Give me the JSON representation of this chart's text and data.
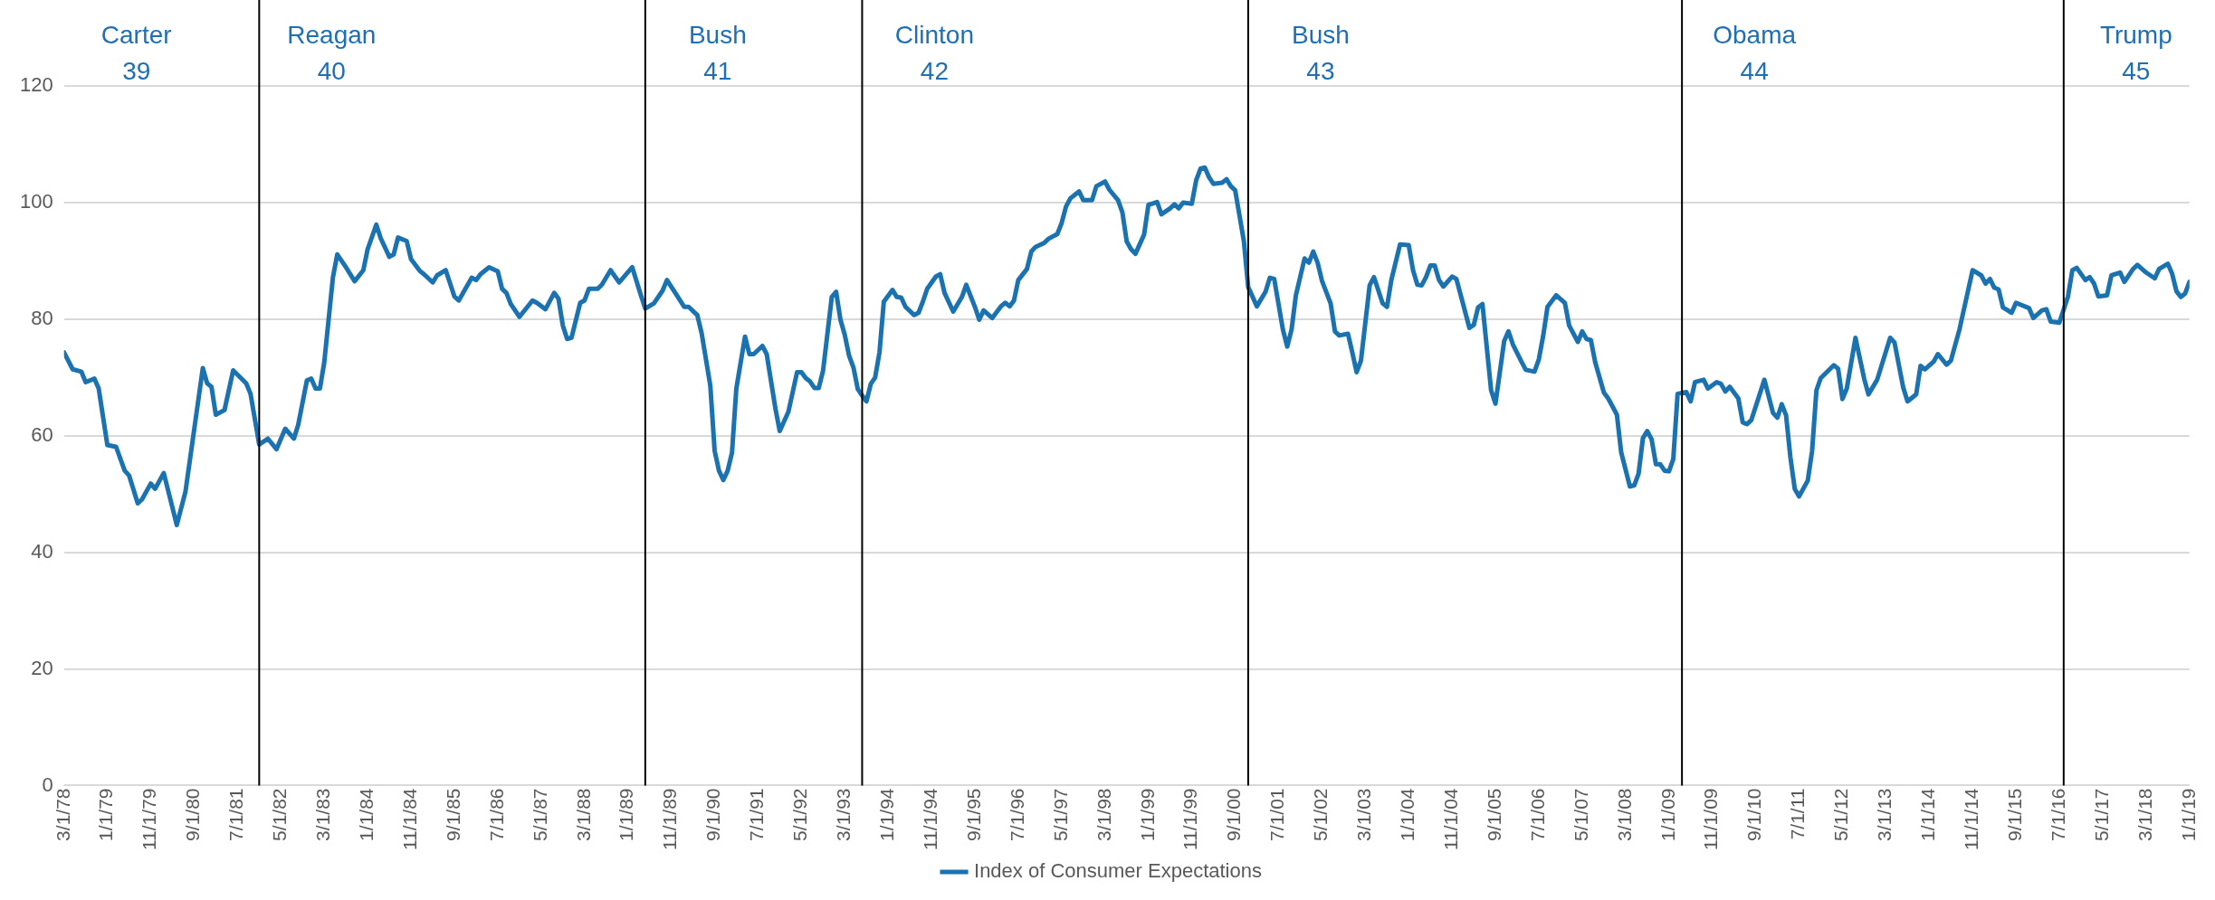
{
  "chart_data": {
    "type": "line",
    "x": [
      "1978-03",
      "1978-05",
      "1978-07",
      "1978-08",
      "1978-10",
      "1978-11",
      "1979-01",
      "1979-03",
      "1979-05",
      "1979-06",
      "1979-08",
      "1979-09",
      "1979-11",
      "1979-12",
      "1980-02",
      "1980-05",
      "1980-07",
      "1980-11",
      "1980-12",
      "1981-01",
      "1981-02",
      "1981-04",
      "1981-06",
      "1981-09",
      "1981-10",
      "1981-12",
      "1982-02",
      "1982-04",
      "1982-06",
      "1982-08",
      "1982-09",
      "1982-11",
      "1982-12",
      "1983-01",
      "1983-02",
      "1983-03",
      "1983-05",
      "1983-06",
      "1983-08",
      "1983-10",
      "1983-12",
      "1984-01",
      "1984-03",
      "1984-04",
      "1984-06",
      "1984-07",
      "1984-08",
      "1984-10",
      "1984-11",
      "1985-01",
      "1985-02",
      "1985-04",
      "1985-05",
      "1985-07",
      "1985-09",
      "1985-10",
      "1986-01",
      "1986-02",
      "1986-03",
      "1986-05",
      "1986-07",
      "1986-08",
      "1986-09",
      "1986-10",
      "1986-12",
      "1987-03",
      "1987-04",
      "1987-06",
      "1987-08",
      "1987-09",
      "1987-10",
      "1987-11",
      "1987-12",
      "1988-02",
      "1988-03",
      "1988-04",
      "1988-06",
      "1988-07",
      "1988-09",
      "1988-11",
      "1989-02",
      "1989-04",
      "1989-05",
      "1989-07",
      "1989-09",
      "1989-10",
      "1989-12",
      "1990-02",
      "1990-03",
      "1990-05",
      "1990-06",
      "1990-08",
      "1990-09",
      "1990-10",
      "1990-11",
      "1990-12",
      "1991-01",
      "1991-02",
      "1991-04",
      "1991-05",
      "1991-06",
      "1991-08",
      "1991-09",
      "1991-11",
      "1991-12",
      "1992-02",
      "1992-04",
      "1992-05",
      "1992-06",
      "1992-07",
      "1992-08",
      "1992-09",
      "1992-10",
      "1992-12",
      "1993-01",
      "1993-02",
      "1993-03",
      "1993-04",
      "1993-05",
      "1993-06",
      "1993-07",
      "1993-08",
      "1993-09",
      "1993-10",
      "1993-11",
      "1993-12",
      "1994-02",
      "1994-03",
      "1994-04",
      "1994-05",
      "1994-07",
      "1994-08",
      "1994-09",
      "1994-10",
      "1994-12",
      "1995-01",
      "1995-02",
      "1995-04",
      "1995-06",
      "1995-07",
      "1995-09",
      "1995-10",
      "1995-11",
      "1996-01",
      "1996-03",
      "1996-04",
      "1996-05",
      "1996-06",
      "1996-07",
      "1996-09",
      "1996-10",
      "1996-11",
      "1997-01",
      "1997-02",
      "1997-04",
      "1997-05",
      "1997-06",
      "1997-07",
      "1997-08",
      "1997-09",
      "1997-10",
      "1997-12",
      "1998-01",
      "1998-03",
      "1998-04",
      "1998-06",
      "1998-07",
      "1998-08",
      "1998-09",
      "1998-10",
      "1998-12",
      "1999-01",
      "1999-03",
      "1999-04",
      "1999-06",
      "1999-07",
      "1999-08",
      "1999-09",
      "1999-11",
      "1999-12",
      "2000-01",
      "2000-02",
      "2000-03",
      "2000-04",
      "2000-06",
      "2000-07",
      "2000-08",
      "2000-09",
      "2000-11",
      "2000-12",
      "2001-02",
      "2001-04",
      "2001-05",
      "2001-06",
      "2001-08",
      "2001-09",
      "2001-10",
      "2001-11",
      "2002-01",
      "2002-02",
      "2002-03",
      "2002-04",
      "2002-05",
      "2002-07",
      "2002-08",
      "2002-09",
      "2002-11",
      "2002-12",
      "2003-01",
      "2003-02",
      "2003-04",
      "2003-05",
      "2003-07",
      "2003-08",
      "2003-09",
      "2003-11",
      "2004-01",
      "2004-02",
      "2004-03",
      "2004-04",
      "2004-05",
      "2004-06",
      "2004-07",
      "2004-08",
      "2004-09",
      "2004-11",
      "2004-12",
      "2005-03",
      "2005-04",
      "2005-05",
      "2005-06",
      "2005-08",
      "2005-09",
      "2005-11",
      "2005-12",
      "2006-01",
      "2006-03",
      "2006-04",
      "2006-06",
      "2006-07",
      "2006-08",
      "2006-09",
      "2006-11",
      "2007-01",
      "2007-02",
      "2007-04",
      "2007-05",
      "2007-06",
      "2007-07",
      "2007-08",
      "2007-10",
      "2007-11",
      "2008-01",
      "2008-02",
      "2008-04",
      "2008-05",
      "2008-06",
      "2008-07",
      "2008-08",
      "2008-09",
      "2008-10",
      "2008-11",
      "2008-12",
      "2009-01",
      "2009-02",
      "2009-03",
      "2009-05",
      "2009-06",
      "2009-07",
      "2009-09",
      "2009-10",
      "2009-12",
      "2010-01",
      "2010-02",
      "2010-03",
      "2010-05",
      "2010-06",
      "2010-07",
      "2010-08",
      "2010-11",
      "2011-01",
      "2011-02",
      "2011-03",
      "2011-04",
      "2011-05",
      "2011-06",
      "2011-07",
      "2011-09",
      "2011-10",
      "2011-11",
      "2011-12",
      "2012-03",
      "2012-04",
      "2012-05",
      "2012-06",
      "2012-08",
      "2012-10",
      "2012-11",
      "2013-01",
      "2013-04",
      "2013-05",
      "2013-07",
      "2013-08",
      "2013-10",
      "2013-11",
      "2013-12",
      "2014-02",
      "2014-03",
      "2014-05",
      "2014-06",
      "2014-08",
      "2014-11",
      "2015-01",
      "2015-02",
      "2015-03",
      "2015-04",
      "2015-05",
      "2015-06",
      "2015-08",
      "2015-09",
      "2015-12",
      "2016-01",
      "2016-03",
      "2016-04",
      "2016-05",
      "2016-07",
      "2016-09",
      "2016-10",
      "2016-11",
      "2017-01",
      "2017-02",
      "2017-03",
      "2017-04",
      "2017-06",
      "2017-07",
      "2017-09",
      "2017-10",
      "2017-12",
      "2018-01",
      "2018-03",
      "2018-05",
      "2018-06",
      "2018-08",
      "2018-09",
      "2018-10",
      "2018-11",
      "2018-12",
      "2019-01"
    ],
    "series": [
      {
        "name": "Index of Consumer Expectations",
        "color": "#1b72b0",
        "values": [
          74.3,
          71.4,
          71.0,
          69.2,
          69.8,
          68.1,
          58.4,
          58.1,
          54.0,
          53.2,
          48.4,
          49.1,
          51.8,
          50.9,
          53.6,
          44.7,
          50.4,
          71.6,
          69.0,
          68.4,
          63.6,
          64.4,
          71.2,
          69.0,
          67.2,
          58.5,
          59.5,
          57.7,
          61.2,
          59.5,
          61.9,
          69.5,
          69.8,
          68.1,
          68.1,
          72.6,
          87.2,
          91.1,
          88.9,
          86.5,
          88.4,
          92.0,
          96.2,
          93.9,
          90.7,
          91.1,
          94.0,
          93.4,
          90.3,
          88.3,
          87.7,
          86.3,
          87.5,
          88.4,
          83.9,
          83.2,
          87.1,
          86.7,
          87.7,
          88.9,
          88.2,
          85.2,
          84.5,
          82.6,
          80.4,
          83.2,
          82.8,
          81.7,
          84.5,
          83.5,
          78.9,
          76.6,
          76.8,
          82.8,
          83.2,
          85.2,
          85.2,
          85.9,
          88.4,
          86.3,
          88.9,
          84.1,
          81.8,
          82.7,
          84.9,
          86.7,
          84.4,
          82.1,
          82.1,
          80.7,
          77.6,
          68.6,
          57.4,
          54.0,
          52.4,
          54.0,
          57.1,
          68.1,
          77.0,
          74.0,
          74.0,
          75.4,
          74.0,
          64.7,
          60.8,
          64.1,
          70.9,
          70.9,
          69.9,
          69.3,
          68.2,
          68.2,
          71.2,
          83.8,
          84.7,
          79.9,
          77.3,
          73.7,
          71.7,
          68.0,
          66.9,
          65.9,
          68.9,
          70.0,
          74.3,
          83.0,
          85.0,
          83.8,
          83.7,
          82.1,
          80.7,
          81.1,
          83.0,
          85.2,
          87.3,
          87.7,
          84.5,
          81.3,
          83.8,
          85.9,
          82.1,
          79.9,
          81.5,
          80.2,
          82.2,
          82.8,
          82.2,
          83.2,
          86.7,
          88.6,
          91.6,
          92.4,
          93.1,
          93.8,
          94.6,
          96.5,
          99.3,
          100.7,
          101.3,
          101.9,
          100.4,
          100.4,
          102.8,
          103.6,
          102.2,
          100.4,
          98.3,
          93.3,
          92.0,
          91.2,
          94.5,
          99.6,
          100.1,
          98.0,
          99.0,
          99.7,
          99.0,
          100.0,
          99.8,
          103.8,
          105.8,
          106.0,
          104.3,
          103.2,
          103.4,
          104.0,
          102.8,
          102.1,
          93.4,
          85.5,
          82.2,
          84.7,
          87.1,
          86.9,
          78.2,
          75.3,
          78.2,
          84.1,
          90.4,
          89.7,
          91.6,
          89.7,
          86.6,
          82.7,
          77.9,
          77.2,
          77.5,
          74.3,
          70.9,
          72.9,
          85.8,
          87.2,
          82.7,
          82.1,
          86.7,
          92.8,
          92.7,
          88.4,
          85.9,
          85.8,
          87.2,
          89.2,
          89.2,
          86.7,
          85.6,
          87.3,
          86.9,
          78.5,
          79.0,
          82.0,
          82.6,
          67.8,
          65.5,
          76.2,
          77.9,
          75.7,
          72.7,
          71.3,
          71.0,
          73.1,
          77.1,
          82.1,
          84.1,
          82.8,
          78.9,
          76.1,
          77.9,
          76.6,
          76.4,
          72.6,
          67.4,
          66.4,
          63.6,
          57.1,
          51.3,
          51.5,
          53.5,
          59.6,
          60.8,
          59.4,
          55.1,
          55.1,
          54.0,
          53.9,
          56.0,
          67.2,
          67.5,
          65.9,
          69.2,
          69.6,
          68.1,
          69.2,
          68.9,
          67.6,
          68.4,
          66.4,
          62.3,
          62.0,
          62.7,
          69.6,
          63.9,
          63.1,
          65.4,
          63.5,
          56.3,
          50.9,
          49.6,
          52.3,
          57.4,
          67.8,
          69.9,
          72.1,
          71.5,
          66.3,
          68.1,
          76.8,
          69.8,
          67.1,
          69.6,
          76.8,
          76.0,
          68.3,
          65.9,
          67.1,
          72.0,
          71.4,
          72.7,
          74.0,
          72.2,
          72.9,
          78.3,
          88.4,
          87.5,
          86.1,
          86.9,
          85.4,
          85.1,
          82.0,
          81.1,
          82.8,
          81.9,
          80.2,
          81.5,
          81.7,
          79.6,
          79.4,
          83.9,
          88.4,
          88.8,
          86.7,
          87.2,
          86.1,
          83.9,
          84.1,
          87.5,
          88.0,
          86.4,
          88.6,
          89.3,
          88.0,
          87.0,
          88.6,
          89.5,
          87.8,
          84.8,
          83.8,
          84.4,
          86.4
        ]
      }
    ],
    "xlim": [
      "1978-03",
      "2019-01"
    ],
    "xticks": [
      {
        "value": "1978-03",
        "label": "3/1/78"
      },
      {
        "value": "1979-01",
        "label": "1/1/79"
      },
      {
        "value": "1979-11",
        "label": "11/1/79"
      },
      {
        "value": "1980-09",
        "label": "9/1/80"
      },
      {
        "value": "1981-07",
        "label": "7/1/81"
      },
      {
        "value": "1982-05",
        "label": "5/1/82"
      },
      {
        "value": "1983-03",
        "label": "3/1/83"
      },
      {
        "value": "1984-01",
        "label": "1/1/84"
      },
      {
        "value": "1984-11",
        "label": "11/1/84"
      },
      {
        "value": "1985-09",
        "label": "9/1/85"
      },
      {
        "value": "1986-07",
        "label": "7/1/86"
      },
      {
        "value": "1987-05",
        "label": "5/1/87"
      },
      {
        "value": "1988-03",
        "label": "3/1/88"
      },
      {
        "value": "1989-01",
        "label": "1/1/89"
      },
      {
        "value": "1989-11",
        "label": "11/1/89"
      },
      {
        "value": "1990-09",
        "label": "9/1/90"
      },
      {
        "value": "1991-07",
        "label": "7/1/91"
      },
      {
        "value": "1992-05",
        "label": "5/1/92"
      },
      {
        "value": "1993-03",
        "label": "3/1/93"
      },
      {
        "value": "1994-01",
        "label": "1/1/94"
      },
      {
        "value": "1994-11",
        "label": "11/1/94"
      },
      {
        "value": "1995-09",
        "label": "9/1/95"
      },
      {
        "value": "1996-07",
        "label": "7/1/96"
      },
      {
        "value": "1997-05",
        "label": "5/1/97"
      },
      {
        "value": "1998-03",
        "label": "3/1/98"
      },
      {
        "value": "1999-01",
        "label": "1/1/99"
      },
      {
        "value": "1999-11",
        "label": "11/1/99"
      },
      {
        "value": "2000-09",
        "label": "9/1/00"
      },
      {
        "value": "2001-07",
        "label": "7/1/01"
      },
      {
        "value": "2002-05",
        "label": "5/1/02"
      },
      {
        "value": "2003-03",
        "label": "3/1/03"
      },
      {
        "value": "2004-01",
        "label": "1/1/04"
      },
      {
        "value": "2004-11",
        "label": "11/1/04"
      },
      {
        "value": "2005-09",
        "label": "9/1/05"
      },
      {
        "value": "2006-07",
        "label": "7/1/06"
      },
      {
        "value": "2007-05",
        "label": "5/1/07"
      },
      {
        "value": "2008-03",
        "label": "3/1/08"
      },
      {
        "value": "2009-01",
        "label": "1/1/09"
      },
      {
        "value": "2009-11",
        "label": "11/1/09"
      },
      {
        "value": "2010-09",
        "label": "9/1/10"
      },
      {
        "value": "2011-07",
        "label": "7/1/11"
      },
      {
        "value": "2012-05",
        "label": "5/1/12"
      },
      {
        "value": "2013-03",
        "label": "3/1/13"
      },
      {
        "value": "2014-01",
        "label": "1/1/14"
      },
      {
        "value": "2014-11",
        "label": "11/1/14"
      },
      {
        "value": "2015-09",
        "label": "9/1/15"
      },
      {
        "value": "2016-07",
        "label": "7/1/16"
      },
      {
        "value": "2017-05",
        "label": "5/1/17"
      },
      {
        "value": "2018-03",
        "label": "3/1/18"
      },
      {
        "value": "2019-01",
        "label": "1/1/19"
      }
    ],
    "ylim": [
      0,
      120
    ],
    "yticks": [
      0,
      20,
      40,
      60,
      80,
      100,
      120
    ],
    "grid": "y",
    "legend": "bottom",
    "marker": "none",
    "line_style": "solid",
    "ref_lines": [
      {
        "axis": "x",
        "value": "1981-12",
        "color": "#000000"
      },
      {
        "axis": "x",
        "value": "1989-05",
        "color": "#000000"
      },
      {
        "axis": "x",
        "value": "1993-07",
        "color": "#000000"
      },
      {
        "axis": "x",
        "value": "2000-12",
        "color": "#000000"
      },
      {
        "axis": "x",
        "value": "2009-04",
        "color": "#000000"
      },
      {
        "axis": "x",
        "value": "2016-08",
        "color": "#000000"
      }
    ],
    "annotations": [
      "Carter\n39",
      "Reagan\n40",
      "Bush\n41",
      "Clinton\n42",
      "Bush\n43",
      "Obama\n44",
      "Trump\n45"
    ]
  }
}
